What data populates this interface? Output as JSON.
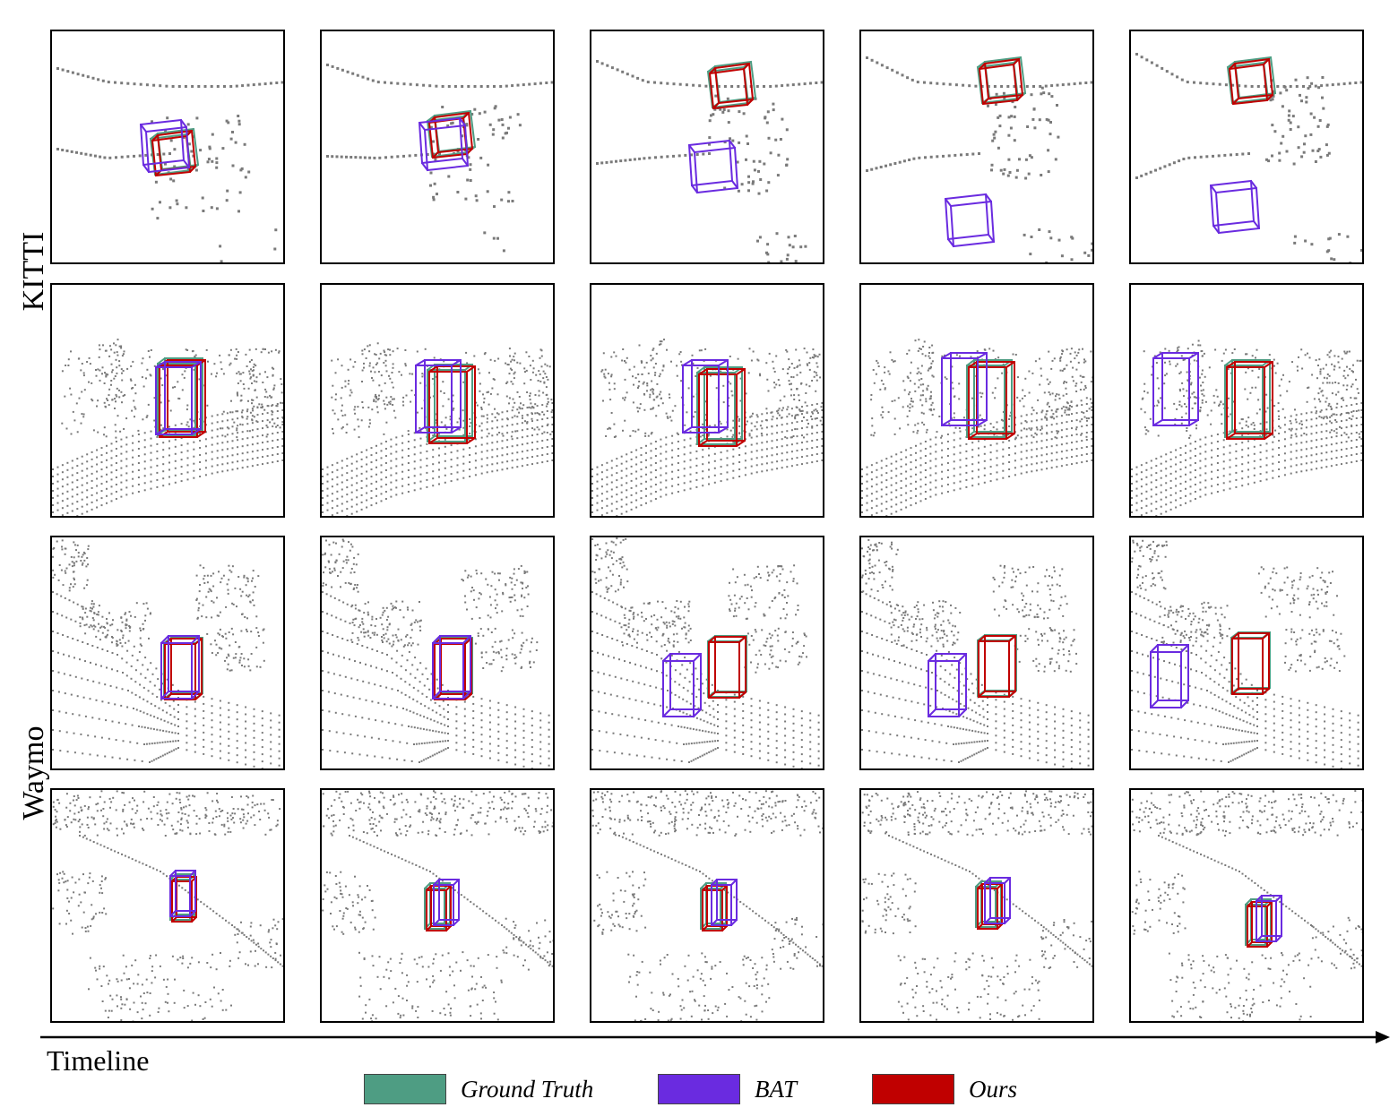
{
  "rows": [
    {
      "label": "KITTI",
      "group": "KITTI"
    },
    {
      "label": "KITTI",
      "group": "KITTI"
    },
    {
      "label": "Waymo",
      "group": "Waymo"
    },
    {
      "label": "Waymo",
      "group": "Waymo"
    }
  ],
  "group_labels": {
    "kitti": "KITTI",
    "waymo": "Waymo"
  },
  "timeline": {
    "label": "Timeline"
  },
  "legend": {
    "ground_truth": {
      "label": "Ground Truth",
      "color": "#4e9d83"
    },
    "bat": {
      "label": "BAT",
      "color": "#6a2be0"
    },
    "ours": {
      "label": "Ours",
      "color": "#c00000"
    }
  },
  "colors": {
    "points": "#7a7a7a",
    "border": "#000000"
  }
}
